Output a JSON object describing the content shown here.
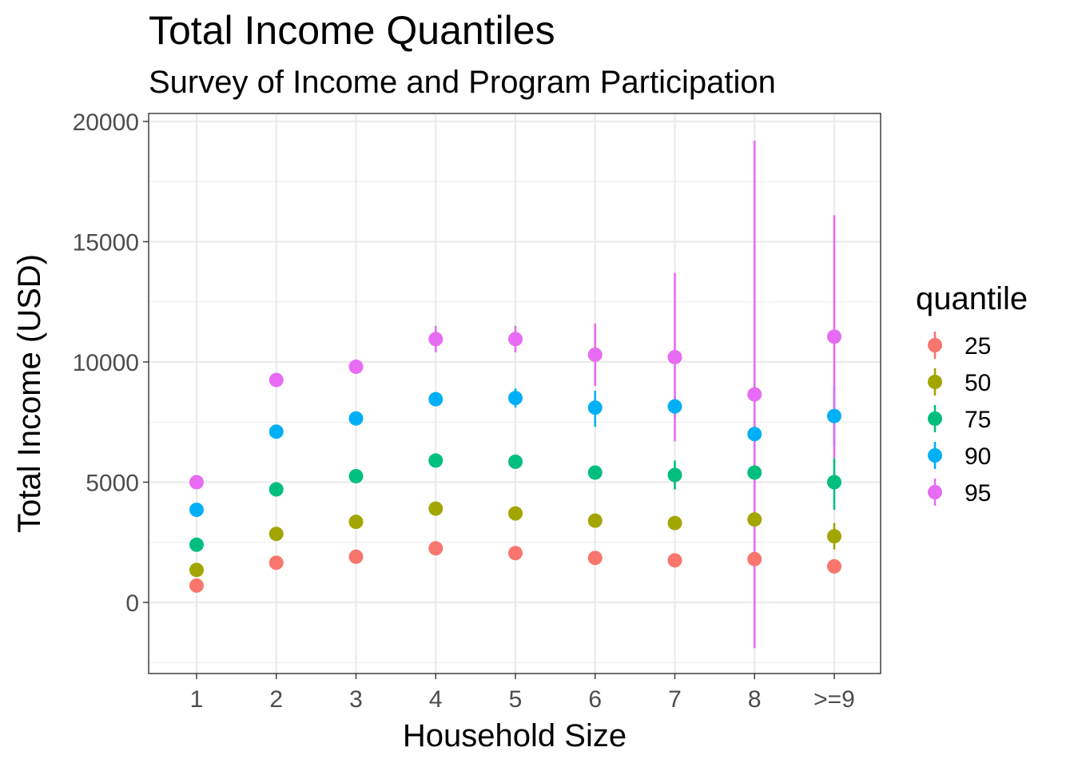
{
  "chart_data": {
    "type": "scatter",
    "title": "Total Income Quantiles",
    "subtitle": "Survey of Income and Program Participation",
    "xlabel": "Household Size",
    "ylabel": "Total Income (USD)",
    "categories": [
      "1",
      "2",
      "3",
      "4",
      "5",
      "6",
      "7",
      "8",
      ">=9"
    ],
    "ylim": [
      -3000,
      20500
    ],
    "yticks": [
      0,
      5000,
      10000,
      15000,
      20000
    ],
    "ytick_labels": [
      "0",
      "5000",
      "10000",
      "15000",
      "20000"
    ],
    "grid": true,
    "legend": {
      "title": "quantile",
      "placement": "right"
    },
    "series": [
      {
        "name": "25",
        "color": "#F8766D",
        "values": [
          700,
          1650,
          1900,
          2250,
          2050,
          1850,
          1750,
          1800,
          1500
        ],
        "error": [
          [
            700,
            700
          ],
          [
            1600,
            1700
          ],
          [
            1850,
            1950
          ],
          [
            2200,
            2300
          ],
          [
            1950,
            2150
          ],
          [
            1700,
            2000
          ],
          [
            1600,
            1900
          ],
          [
            1700,
            1900
          ],
          [
            1200,
            1800
          ]
        ]
      },
      {
        "name": "50",
        "color": "#A3A500",
        "values": [
          1350,
          2850,
          3350,
          3900,
          3700,
          3400,
          3300,
          3450,
          2750
        ],
        "error": [
          [
            1350,
            1350
          ],
          [
            2800,
            2900
          ],
          [
            3300,
            3400
          ],
          [
            3800,
            4000
          ],
          [
            3600,
            3800
          ],
          [
            3200,
            3600
          ],
          [
            3150,
            3450
          ],
          [
            3000,
            3900
          ],
          [
            2200,
            3300
          ]
        ]
      },
      {
        "name": "75",
        "color": "#00BF7D",
        "values": [
          2400,
          4700,
          5250,
          5900,
          5850,
          5400,
          5300,
          5400,
          5000
        ],
        "error": [
          [
            2400,
            2400
          ],
          [
            4650,
            4750
          ],
          [
            5200,
            5300
          ],
          [
            5800,
            6000
          ],
          [
            5700,
            6000
          ],
          [
            5200,
            5600
          ],
          [
            4700,
            5900
          ],
          [
            5000,
            5800
          ],
          [
            3850,
            6000
          ]
        ]
      },
      {
        "name": "90",
        "color": "#00B0F6",
        "values": [
          3850,
          7100,
          7650,
          8450,
          8500,
          8100,
          8150,
          7000,
          7750
        ],
        "error": [
          [
            3850,
            3850
          ],
          [
            7050,
            7150
          ],
          [
            7600,
            7700
          ],
          [
            8350,
            8550
          ],
          [
            8100,
            8900
          ],
          [
            7300,
            8800
          ],
          [
            7700,
            8600
          ],
          [
            6500,
            7500
          ],
          [
            6500,
            9000
          ]
        ]
      },
      {
        "name": "95",
        "color": "#E76BF3",
        "values": [
          5000,
          9250,
          9800,
          10950,
          10950,
          10300,
          10200,
          8650,
          11050
        ],
        "error": [
          [
            5000,
            5000
          ],
          [
            9200,
            9300
          ],
          [
            9750,
            9850
          ],
          [
            10400,
            11500
          ],
          [
            10400,
            11500
          ],
          [
            9000,
            11600
          ],
          [
            6700,
            13700
          ],
          [
            -1900,
            19200
          ],
          [
            6000,
            16100
          ]
        ]
      }
    ]
  }
}
